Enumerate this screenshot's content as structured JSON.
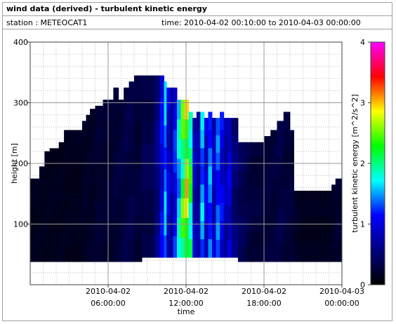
{
  "header": {
    "title": "wind data (derived) - turbulent kinetic energy",
    "station": "station : METEOCAT1",
    "time_range": "time: 2010-04-02 00:10:00 to 2010-04-03 00:00:00"
  },
  "chart_data": {
    "type": "heatmap",
    "xlabel": "time",
    "ylabel": "height [m]",
    "colorbar_label": "turbulent kinetic energy [m^2/s^2]",
    "x_range_hours": [
      0,
      24
    ],
    "x_ticks": [
      {
        "hour": 6,
        "line1": "2010-04-02",
        "line2": "06:00:00"
      },
      {
        "hour": 12,
        "line1": "2010-04-02",
        "line2": "12:00:00"
      },
      {
        "hour": 18,
        "line1": "2010-04-02",
        "line2": "18:00:00"
      },
      {
        "hour": 24,
        "line1": "2010-04-03",
        "line2": "00:00:00"
      }
    ],
    "ylim": [
      0,
      400
    ],
    "y_ticks": [
      100,
      200,
      300,
      400
    ],
    "colorbar_range": [
      0,
      4
    ],
    "colorbar_ticks": [
      0,
      1,
      2,
      3,
      4
    ],
    "colormap": [
      "#000000",
      "#000080",
      "#0000ff",
      "#00ffff",
      "#00ff00",
      "#ffff00",
      "#ff0000",
      "#ff00ff"
    ],
    "grid": true,
    "data_bottom_m": 38,
    "columns": [
      {
        "t0": 0.0,
        "t1": 0.7,
        "top": 175,
        "bottom": 38,
        "tke": 0.15
      },
      {
        "t0": 0.7,
        "t1": 1.1,
        "top": 195,
        "bottom": 38,
        "tke": 0.15
      },
      {
        "t0": 1.1,
        "t1": 1.5,
        "top": 220,
        "bottom": 38,
        "tke": 0.15
      },
      {
        "t0": 1.5,
        "t1": 2.2,
        "top": 225,
        "bottom": 38,
        "tke": 0.15
      },
      {
        "t0": 2.2,
        "t1": 2.6,
        "top": 235,
        "bottom": 38,
        "tke": 0.15
      },
      {
        "t0": 2.6,
        "t1": 2.9,
        "top": 255,
        "bottom": 38,
        "tke": 0.15
      },
      {
        "t0": 2.9,
        "t1": 4.0,
        "top": 255,
        "bottom": 38,
        "tke": 0.15
      },
      {
        "t0": 4.0,
        "t1": 4.3,
        "top": 270,
        "bottom": 38,
        "tke": 0.2
      },
      {
        "t0": 4.3,
        "t1": 4.6,
        "top": 280,
        "bottom": 38,
        "tke": 0.2
      },
      {
        "t0": 4.6,
        "t1": 5.0,
        "top": 290,
        "bottom": 38,
        "tke": 0.2
      },
      {
        "t0": 5.0,
        "t1": 5.6,
        "top": 295,
        "bottom": 38,
        "tke": 0.25
      },
      {
        "t0": 5.6,
        "t1": 6.4,
        "top": 305,
        "bottom": 38,
        "tke": 0.25
      },
      {
        "t0": 6.4,
        "t1": 6.8,
        "top": 325,
        "bottom": 38,
        "tke": 0.3
      },
      {
        "t0": 6.8,
        "t1": 7.2,
        "top": 305,
        "bottom": 38,
        "tke": 0.3
      },
      {
        "t0": 7.2,
        "t1": 7.6,
        "top": 325,
        "bottom": 38,
        "tke": 0.35
      },
      {
        "t0": 7.6,
        "t1": 8.0,
        "top": 335,
        "bottom": 38,
        "tke": 0.35
      },
      {
        "t0": 8.0,
        "t1": 8.6,
        "top": 345,
        "bottom": 38,
        "tke": 0.3
      },
      {
        "t0": 8.6,
        "t1": 9.6,
        "top": 345,
        "bottom": 45,
        "tke": 0.4
      },
      {
        "t0": 9.6,
        "t1": 10.0,
        "top": 345,
        "bottom": 45,
        "tke": 0.7
      },
      {
        "t0": 10.0,
        "t1": 10.3,
        "top": 345,
        "bottom": 45,
        "tke": 1.2
      },
      {
        "t0": 10.3,
        "t1": 10.5,
        "top": 335,
        "bottom": 45,
        "tke": 1.7
      },
      {
        "t0": 10.5,
        "t1": 10.8,
        "top": 325,
        "bottom": 45,
        "tke": 1.1
      },
      {
        "t0": 10.8,
        "t1": 11.0,
        "top": 325,
        "bottom": 45,
        "tke": 0.8
      },
      {
        "t0": 11.0,
        "t1": 11.3,
        "top": 325,
        "bottom": 45,
        "tke": 1.3
      },
      {
        "t0": 11.3,
        "t1": 11.6,
        "top": 305,
        "bottom": 45,
        "tke": 1.9
      },
      {
        "t0": 11.6,
        "t1": 11.9,
        "top": 305,
        "bottom": 45,
        "tke": 2.6
      },
      {
        "t0": 11.9,
        "t1": 12.2,
        "top": 305,
        "bottom": 45,
        "tke": 3.1
      },
      {
        "t0": 12.2,
        "t1": 12.5,
        "top": 285,
        "bottom": 45,
        "tke": 2.4
      },
      {
        "t0": 12.5,
        "t1": 12.8,
        "top": 275,
        "bottom": 45,
        "tke": 1.0
      },
      {
        "t0": 12.8,
        "t1": 13.1,
        "top": 285,
        "bottom": 45,
        "tke": 0.8
      },
      {
        "t0": 13.1,
        "t1": 13.4,
        "top": 285,
        "bottom": 45,
        "tke": 1.7
      },
      {
        "t0": 13.4,
        "t1": 13.7,
        "top": 275,
        "bottom": 45,
        "tke": 1.1
      },
      {
        "t0": 13.7,
        "t1": 14.0,
        "top": 285,
        "bottom": 45,
        "tke": 1.6
      },
      {
        "t0": 14.0,
        "t1": 14.3,
        "top": 275,
        "bottom": 45,
        "tke": 1.0
      },
      {
        "t0": 14.3,
        "t1": 14.6,
        "top": 275,
        "bottom": 45,
        "tke": 1.5
      },
      {
        "t0": 14.6,
        "t1": 14.9,
        "top": 285,
        "bottom": 45,
        "tke": 1.2
      },
      {
        "t0": 14.9,
        "t1": 15.2,
        "top": 275,
        "bottom": 45,
        "tke": 0.9
      },
      {
        "t0": 15.2,
        "t1": 15.5,
        "top": 275,
        "bottom": 45,
        "tke": 1.1
      },
      {
        "t0": 15.5,
        "t1": 16.0,
        "top": 275,
        "bottom": 45,
        "tke": 0.6
      },
      {
        "t0": 16.0,
        "t1": 16.5,
        "top": 235,
        "bottom": 38,
        "tke": 0.45
      },
      {
        "t0": 16.5,
        "t1": 17.0,
        "top": 235,
        "bottom": 38,
        "tke": 0.35
      },
      {
        "t0": 17.0,
        "t1": 18.0,
        "top": 235,
        "bottom": 38,
        "tke": 0.3
      },
      {
        "t0": 18.0,
        "t1": 18.5,
        "top": 245,
        "bottom": 38,
        "tke": 0.3
      },
      {
        "t0": 18.5,
        "t1": 19.0,
        "top": 255,
        "bottom": 38,
        "tke": 0.3
      },
      {
        "t0": 19.0,
        "t1": 19.5,
        "top": 270,
        "bottom": 38,
        "tke": 0.35
      },
      {
        "t0": 19.5,
        "t1": 20.0,
        "top": 285,
        "bottom": 38,
        "tke": 0.3
      },
      {
        "t0": 20.0,
        "t1": 20.3,
        "top": 255,
        "bottom": 38,
        "tke": 0.3
      },
      {
        "t0": 20.3,
        "t1": 20.8,
        "top": 155,
        "bottom": 38,
        "tke": 0.2
      },
      {
        "t0": 20.8,
        "t1": 23.2,
        "top": 155,
        "bottom": 38,
        "tke": 0.15
      },
      {
        "t0": 23.2,
        "t1": 23.5,
        "top": 165,
        "bottom": 38,
        "tke": 0.2
      },
      {
        "t0": 23.5,
        "t1": 24.0,
        "top": 175,
        "bottom": 38,
        "tke": 0.25
      }
    ]
  }
}
